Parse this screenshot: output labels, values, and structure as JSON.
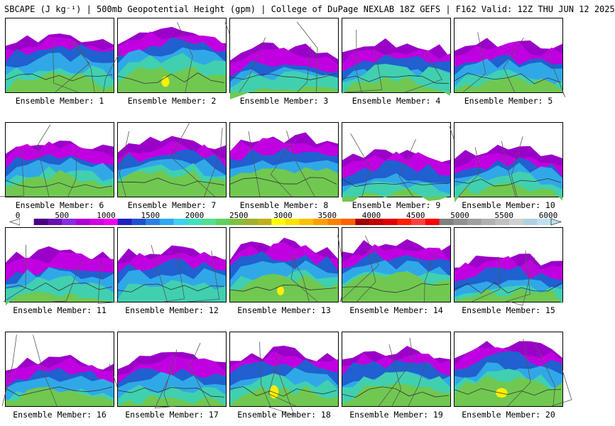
{
  "header": {
    "title": "SBCAPE (J kg⁻¹) | 500mb Geopotential Height (gpm) | College of DuPage NEXLAB 18Z GEFS | F162 Valid: 12Z THU JUN 12 2025"
  },
  "members": [
    {
      "label": "Ensemble Member: 1",
      "intensity": 0.55
    },
    {
      "label": "Ensemble Member: 2",
      "intensity": 0.75
    },
    {
      "label": "Ensemble Member: 3",
      "intensity": 0.55
    },
    {
      "label": "Ensemble Member: 4",
      "intensity": 0.55
    },
    {
      "label": "Ensemble Member: 5",
      "intensity": 0.45
    },
    {
      "label": "Ensemble Member: 6",
      "intensity": 0.65
    },
    {
      "label": "Ensemble Member: 7",
      "intensity": 0.55
    },
    {
      "label": "Ensemble Member: 8",
      "intensity": 0.6
    },
    {
      "label": "Ensemble Member: 9",
      "intensity": 0.55
    },
    {
      "label": "Ensemble Member: 10",
      "intensity": 0.6
    },
    {
      "label": "Ensemble Member: 11",
      "intensity": 0.45
    },
    {
      "label": "Ensemble Member: 12",
      "intensity": 0.4
    },
    {
      "label": "Ensemble Member: 13",
      "intensity": 0.75
    },
    {
      "label": "Ensemble Member: 14",
      "intensity": 0.6
    },
    {
      "label": "Ensemble Member: 15",
      "intensity": 0.55
    },
    {
      "label": "Ensemble Member: 16",
      "intensity": 0.6
    },
    {
      "label": "Ensemble Member: 17",
      "intensity": 0.55
    },
    {
      "label": "Ensemble Member: 18",
      "intensity": 0.7
    },
    {
      "label": "Ensemble Member: 19",
      "intensity": 0.55
    },
    {
      "label": "Ensemble Member: 20",
      "intensity": 0.8
    }
  ],
  "colorbar": {
    "ticks": [
      "0",
      "500",
      "1000",
      "1500",
      "2000",
      "2500",
      "3000",
      "3500",
      "4000",
      "4500",
      "5000",
      "5500",
      "6000"
    ],
    "colors": [
      "#ffffff",
      "#4b0082",
      "#6a0dad",
      "#8a2be2",
      "#b000d0",
      "#d000e0",
      "#ee00ee",
      "#2020c0",
      "#1e50d0",
      "#2a80e0",
      "#30a8f0",
      "#40d0f0",
      "#40e0c0",
      "#50e090",
      "#60d060",
      "#80c040",
      "#a0b030",
      "#c0b020",
      "#ffff00",
      "#ffe000",
      "#ffc000",
      "#ffa000",
      "#ff8000",
      "#ff6000",
      "#a00000",
      "#c00000",
      "#e00000",
      "#ff2000",
      "#ff4040",
      "#ff0000",
      "#808080",
      "#909090",
      "#a0a0a0",
      "#b0b0b0",
      "#c0c0c0",
      "#d0d0d0",
      "#b0d0e0",
      "#c0e0f0"
    ]
  }
}
